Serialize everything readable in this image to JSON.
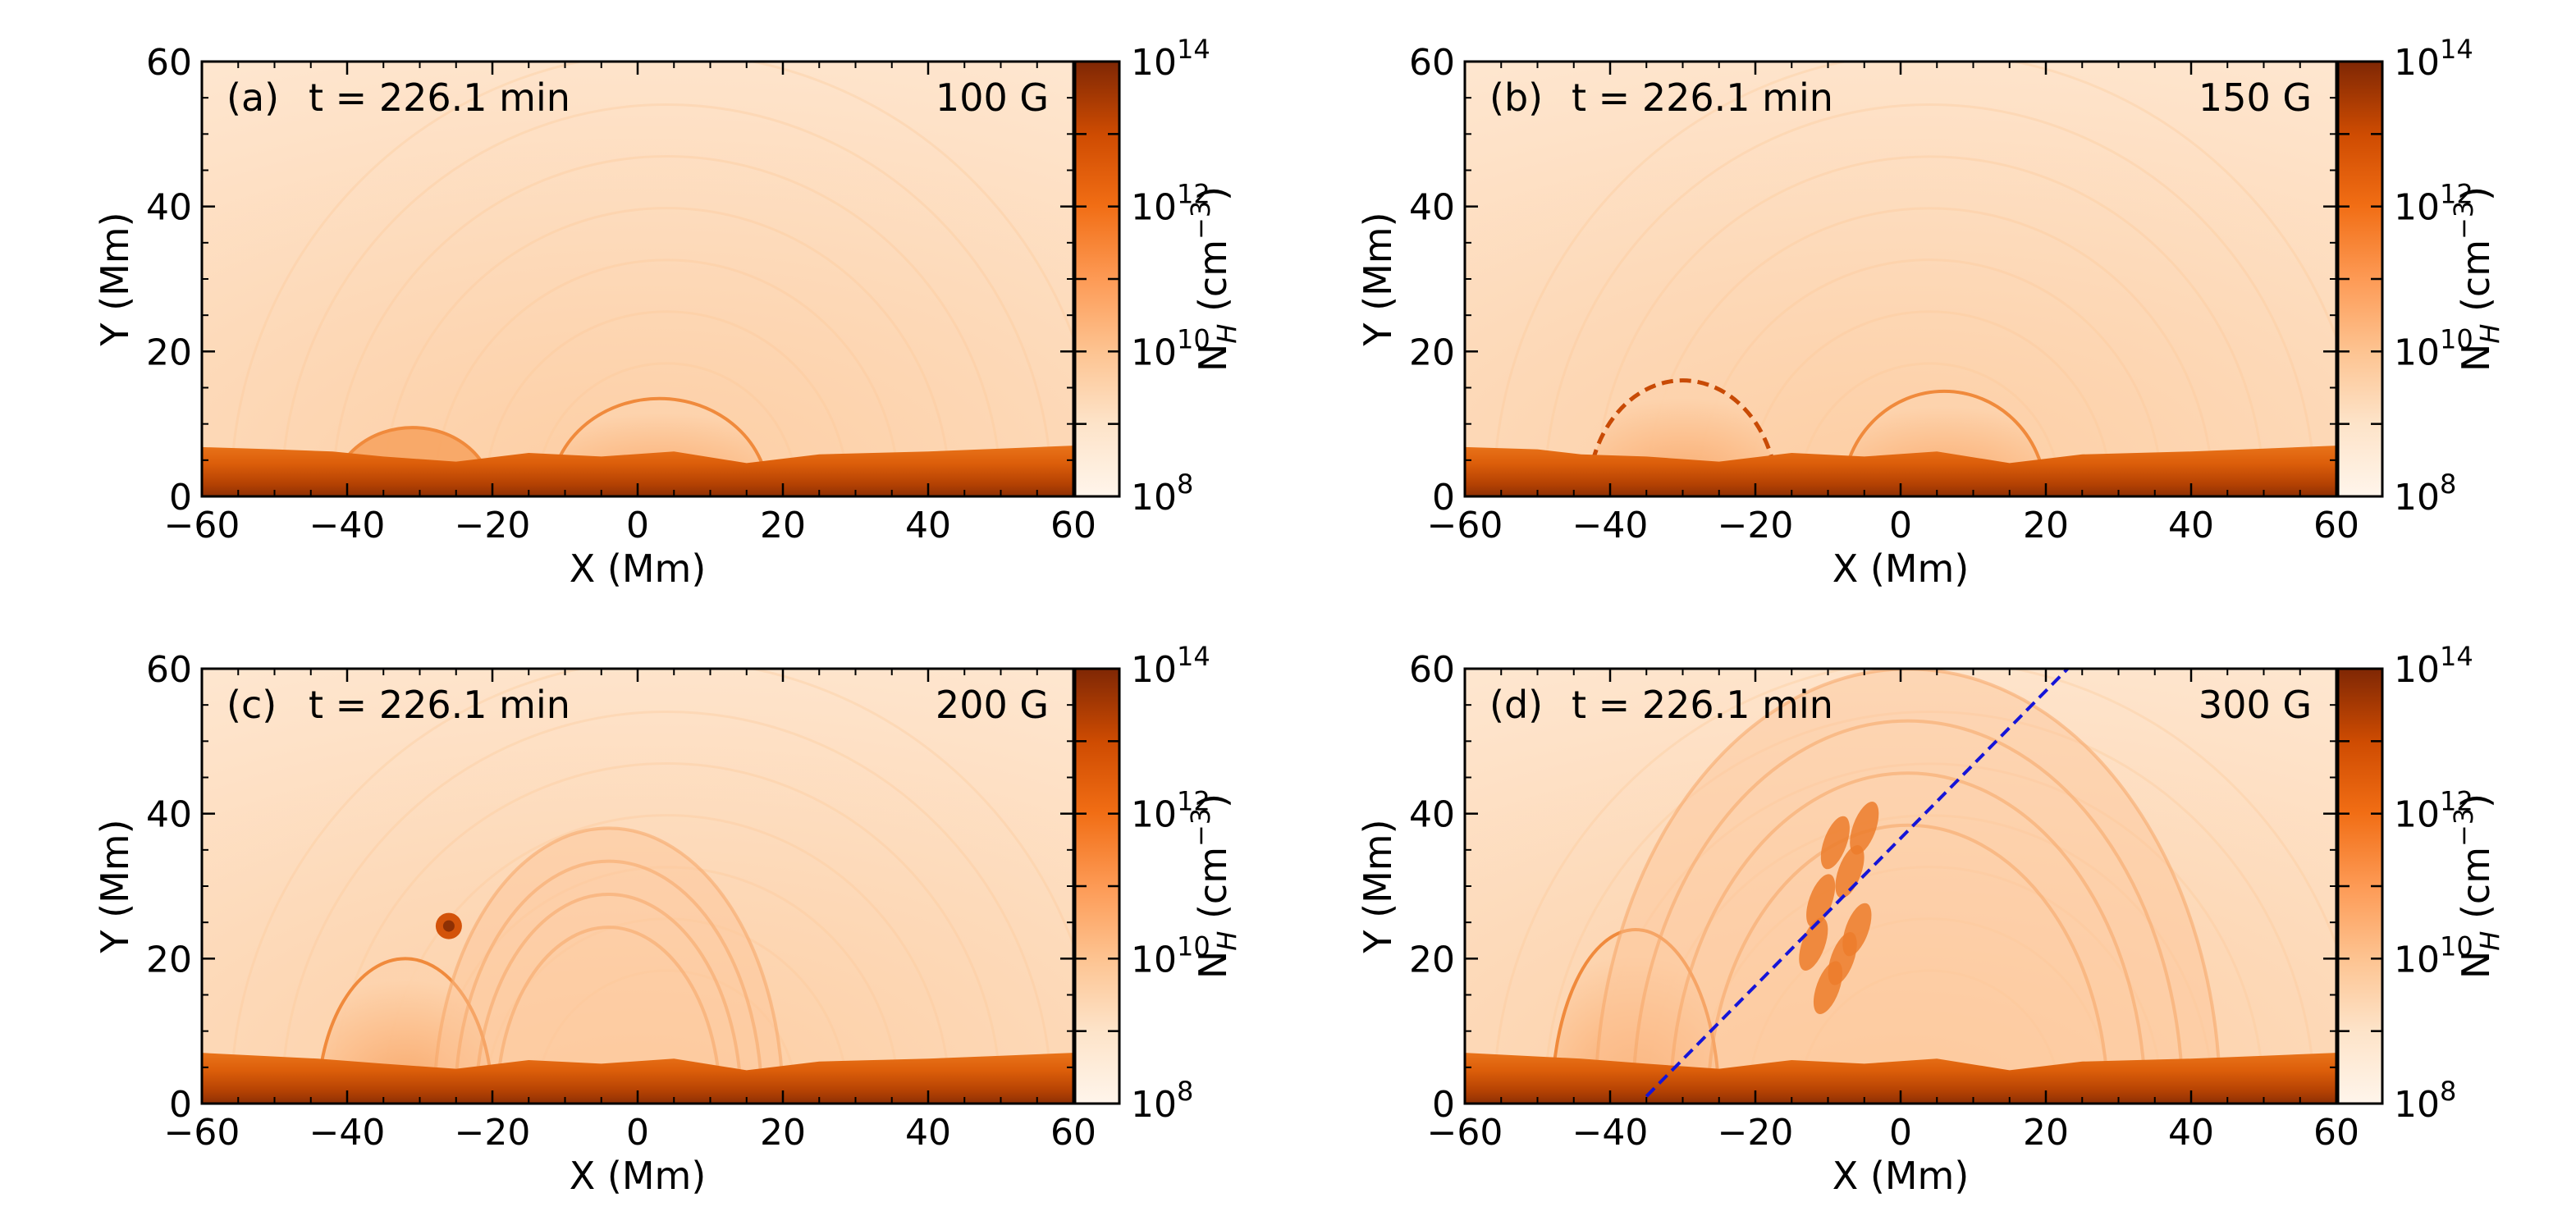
{
  "chart_data": [
    {
      "type": "heatmap",
      "panel_label": "(a)",
      "time_label": "t = 226.1 min",
      "field_label": "100 G",
      "xlabel": "X (Mm)",
      "ylabel": "Y (Mm)",
      "xlim": [
        -60,
        60
      ],
      "ylim": [
        0,
        60
      ],
      "xticks": [
        -60,
        -40,
        -20,
        0,
        20,
        40,
        60
      ],
      "yticks": [
        0,
        20,
        40,
        60
      ],
      "colorbar": {
        "label": "N_H (cm^-3)",
        "exponents": [
          "8",
          "10",
          "12",
          "14"
        ],
        "base": "10",
        "min_exp": 8,
        "max_exp": 14,
        "colormap": "Oranges",
        "scale": "log"
      },
      "features": {
        "chromosphere_top": [
          [
            -60,
            6.8
          ],
          [
            -50,
            6.5
          ],
          [
            -42,
            6.2
          ],
          [
            -35,
            5.5
          ],
          [
            -25,
            4.8
          ],
          [
            -15,
            6
          ],
          [
            -5,
            5.5
          ],
          [
            5,
            6.2
          ],
          [
            15,
            4.6
          ],
          [
            25,
            5.8
          ],
          [
            40,
            6.2
          ],
          [
            50,
            6.6
          ],
          [
            60,
            7
          ]
        ],
        "structures": [
          {
            "kind": "small_loop",
            "x_range": [
              -42,
              -20
            ],
            "peak_y": 9.5
          },
          {
            "kind": "dome",
            "x_range": [
              -12,
              18
            ],
            "peak_y": 13.5
          }
        ]
      }
    },
    {
      "type": "heatmap",
      "panel_label": "(b)",
      "time_label": "t = 226.1 min",
      "field_label": "150 G",
      "xlabel": "X (Mm)",
      "ylabel": "Y (Mm)",
      "xlim": [
        -60,
        60
      ],
      "ylim": [
        0,
        60
      ],
      "xticks": [
        -60,
        -40,
        -20,
        0,
        20,
        40,
        60
      ],
      "yticks": [
        0,
        20,
        40,
        60
      ],
      "colorbar": {
        "label": "N_H (cm^-3)",
        "exponents": [
          "8",
          "10",
          "12",
          "14"
        ],
        "base": "10",
        "min_exp": 8,
        "max_exp": 14,
        "colormap": "Oranges",
        "scale": "log"
      },
      "features": {
        "chromosphere_top": [
          [
            -60,
            6.8
          ],
          [
            -50,
            6.5
          ],
          [
            -44,
            5.8
          ],
          [
            -35,
            5.5
          ],
          [
            -25,
            4.8
          ],
          [
            -15,
            6
          ],
          [
            -5,
            5.5
          ],
          [
            5,
            6.2
          ],
          [
            15,
            4.6
          ],
          [
            25,
            5.8
          ],
          [
            40,
            6.2
          ],
          [
            50,
            6.6
          ],
          [
            60,
            7
          ]
        ],
        "structures": [
          {
            "kind": "flux_rope_dome",
            "x_range": [
              -43,
              -17
            ],
            "peak_y": 16
          },
          {
            "kind": "dome",
            "x_range": [
              -8,
              20
            ],
            "peak_y": 14.5
          }
        ]
      }
    },
    {
      "type": "heatmap",
      "panel_label": "(c)",
      "time_label": "t = 226.1 min",
      "field_label": "200 G",
      "xlabel": "X (Mm)",
      "ylabel": "Y (Mm)",
      "xlim": [
        -60,
        60
      ],
      "ylim": [
        0,
        60
      ],
      "xticks": [
        -60,
        -40,
        -20,
        0,
        20,
        40,
        60
      ],
      "yticks": [
        0,
        20,
        40,
        60
      ],
      "colorbar": {
        "label": "N_H (cm^-3)",
        "exponents": [
          "8",
          "10",
          "12",
          "14"
        ],
        "base": "10",
        "min_exp": 8,
        "max_exp": 14,
        "colormap": "Oranges",
        "scale": "log"
      },
      "features": {
        "chromosphere_top": [
          [
            -60,
            7
          ],
          [
            -50,
            6.5
          ],
          [
            -44,
            6.2
          ],
          [
            -35,
            5.5
          ],
          [
            -25,
            4.8
          ],
          [
            -15,
            6
          ],
          [
            -5,
            5.5
          ],
          [
            5,
            6.2
          ],
          [
            15,
            4.6
          ],
          [
            25,
            5.8
          ],
          [
            40,
            6.2
          ],
          [
            50,
            6.6
          ],
          [
            60,
            7
          ]
        ],
        "structures": [
          {
            "kind": "dome",
            "x_range": [
              -44,
              -20
            ],
            "peak_y": 20
          },
          {
            "kind": "erupting_rope",
            "center": [
              -26,
              24.5
            ]
          },
          {
            "kind": "arcade",
            "x_range": [
              -28,
              20
            ],
            "peak_y": 38
          }
        ]
      }
    },
    {
      "type": "heatmap",
      "panel_label": "(d)",
      "time_label": "t = 226.1 min",
      "field_label": "300 G",
      "xlabel": "X (Mm)",
      "ylabel": "Y (Mm)",
      "xlim": [
        -60,
        60
      ],
      "ylim": [
        0,
        60
      ],
      "xticks": [
        -60,
        -40,
        -20,
        0,
        20,
        40,
        60
      ],
      "yticks": [
        0,
        20,
        40,
        60
      ],
      "colorbar": {
        "label": "N_H (cm^-3)",
        "exponents": [
          "8",
          "10",
          "12",
          "14"
        ],
        "base": "10",
        "min_exp": 8,
        "max_exp": 14,
        "colormap": "Oranges",
        "scale": "log"
      },
      "features": {
        "chromosphere_top": [
          [
            -60,
            7
          ],
          [
            -50,
            6.5
          ],
          [
            -44,
            6.2
          ],
          [
            -35,
            5.5
          ],
          [
            -25,
            4.8
          ],
          [
            -15,
            6
          ],
          [
            -5,
            5.5
          ],
          [
            5,
            6.2
          ],
          [
            15,
            4.6
          ],
          [
            25,
            5.8
          ],
          [
            40,
            6.2
          ],
          [
            50,
            6.6
          ],
          [
            60,
            7
          ]
        ],
        "structures": [
          {
            "kind": "dome",
            "x_range": [
              -48,
              -25
            ],
            "peak_y": 24
          },
          {
            "kind": "large_cme_arcade",
            "x_range": [
              -42,
              44
            ],
            "peak_y": 60
          },
          {
            "kind": "dense_blobs",
            "x_range": [
              -14,
              -2
            ],
            "y_range": [
              14,
              40
            ]
          }
        ],
        "cut_line": {
          "style": "dashed",
          "color": "#1515d8",
          "from": [
            -35,
            1
          ],
          "to": [
            23,
            60
          ]
        }
      }
    }
  ]
}
